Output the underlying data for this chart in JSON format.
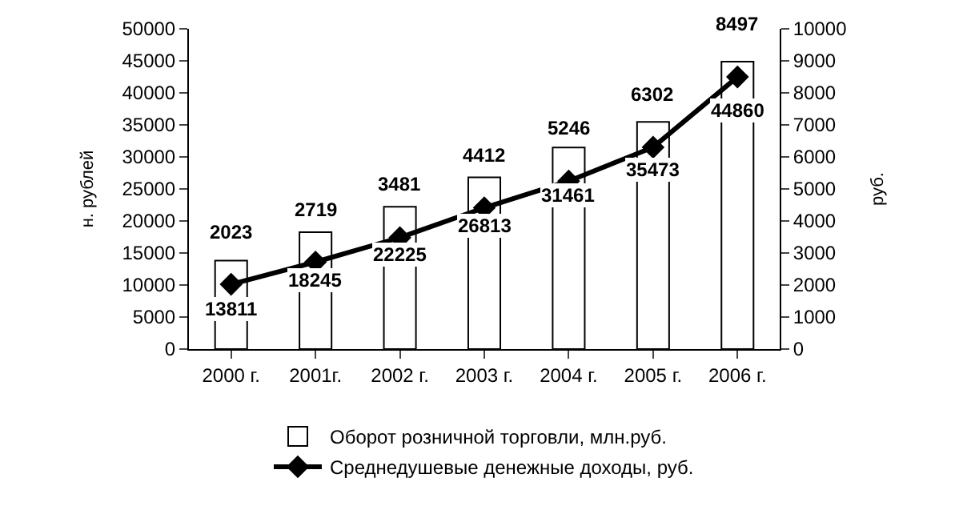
{
  "chart_data": {
    "type": "bar",
    "categories": [
      "2000 г.",
      "2001г.",
      "2002 г.",
      "2003 г.",
      "2004 г.",
      "2005 г.",
      "2006 г."
    ],
    "series": [
      {
        "name": "Оборот розничной торговли, млн.руб.",
        "color": "#ffffff",
        "values": [
          13811,
          18245,
          22225,
          26813,
          31461,
          35473,
          44860
        ]
      },
      {
        "name": "Среднедушевые денежные доходы, руб.",
        "type": "line",
        "axis": "y2",
        "color": "#000000",
        "values": [
          2023,
          2719,
          3481,
          4412,
          5246,
          6302,
          8497
        ]
      }
    ],
    "ylabel": "н. рублей",
    "y2label": "руб.",
    "ylim": [
      0,
      50000
    ],
    "yticks": [
      0,
      5000,
      10000,
      15000,
      20000,
      25000,
      30000,
      35000,
      40000,
      45000,
      50000
    ],
    "y2lim": [
      0,
      10000
    ],
    "y2ticks": [
      0,
      1000,
      2000,
      3000,
      4000,
      5000,
      6000,
      7000,
      8000,
      9000,
      10000
    ],
    "data_labels": true,
    "legend": "bottom",
    "marker": "diamond",
    "line_style": "solid"
  }
}
